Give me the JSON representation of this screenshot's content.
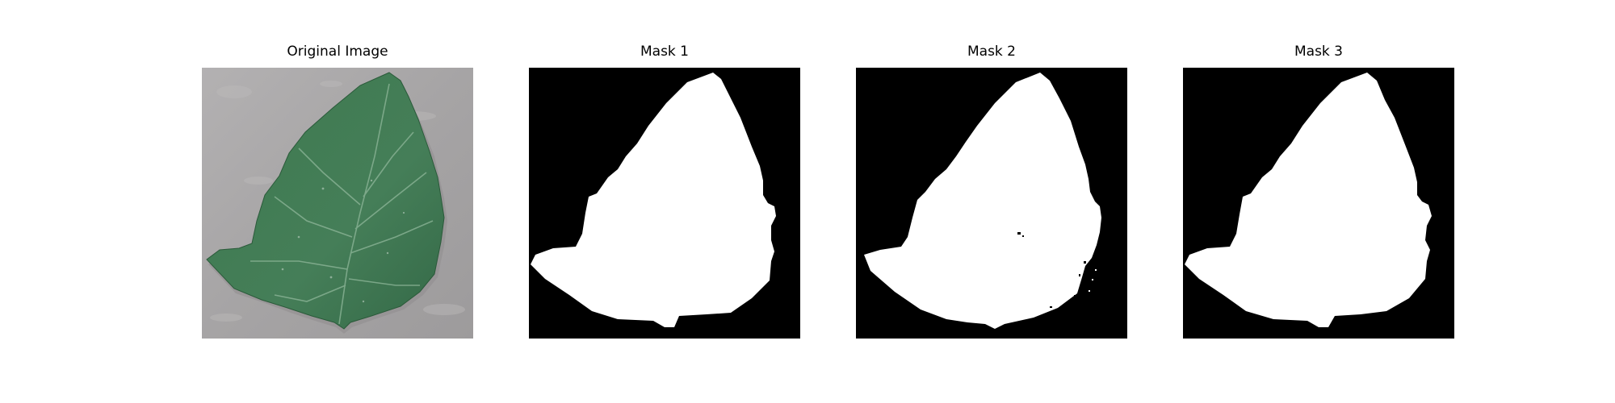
{
  "figure": {
    "panels": [
      {
        "title": "Original Image",
        "content": "photo of a green tomato leaf on a grey stone surface"
      },
      {
        "title": "Mask 1",
        "content": "binary segmentation mask"
      },
      {
        "title": "Mask 2",
        "content": "binary segmentation mask"
      },
      {
        "title": "Mask 3",
        "content": "binary segmentation mask"
      }
    ]
  },
  "colors": {
    "background": "#ffffff",
    "mask_background": "#000000",
    "mask_foreground": "#ffffff",
    "leaf": "#3f7550",
    "surface": "#a9a7a8"
  }
}
